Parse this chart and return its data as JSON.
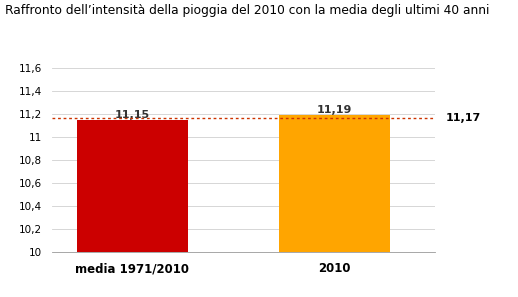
{
  "title": "Raffronto dell’intensità della pioggia del 2010 con la media degli ultimi 40 anni",
  "categories": [
    "media 1971/2010",
    "2010"
  ],
  "values": [
    11.15,
    11.19
  ],
  "bar_colors": [
    "#cc0000",
    "#ffa500"
  ],
  "bar_labels": [
    "11,15",
    "11,19"
  ],
  "reference_value": 11.17,
  "reference_label": "11,17",
  "ylim": [
    10.0,
    11.6
  ],
  "yticks": [
    10.0,
    10.2,
    10.4,
    10.6,
    10.8,
    11.0,
    11.2,
    11.4,
    11.6
  ],
  "ytick_labels": [
    "10",
    "10,2",
    "10,4",
    "10,6",
    "10,8",
    "11",
    "11,2",
    "11,4",
    "11,6"
  ],
  "background_color": "#ffffff",
  "grid_color": "#d0d0d0",
  "title_fontsize": 8.8,
  "label_fontsize": 8.5,
  "bar_label_fontsize": 8.0,
  "tick_fontsize": 7.5,
  "ref_label_fontsize": 8.0,
  "ref_line_color": "#cc3300"
}
